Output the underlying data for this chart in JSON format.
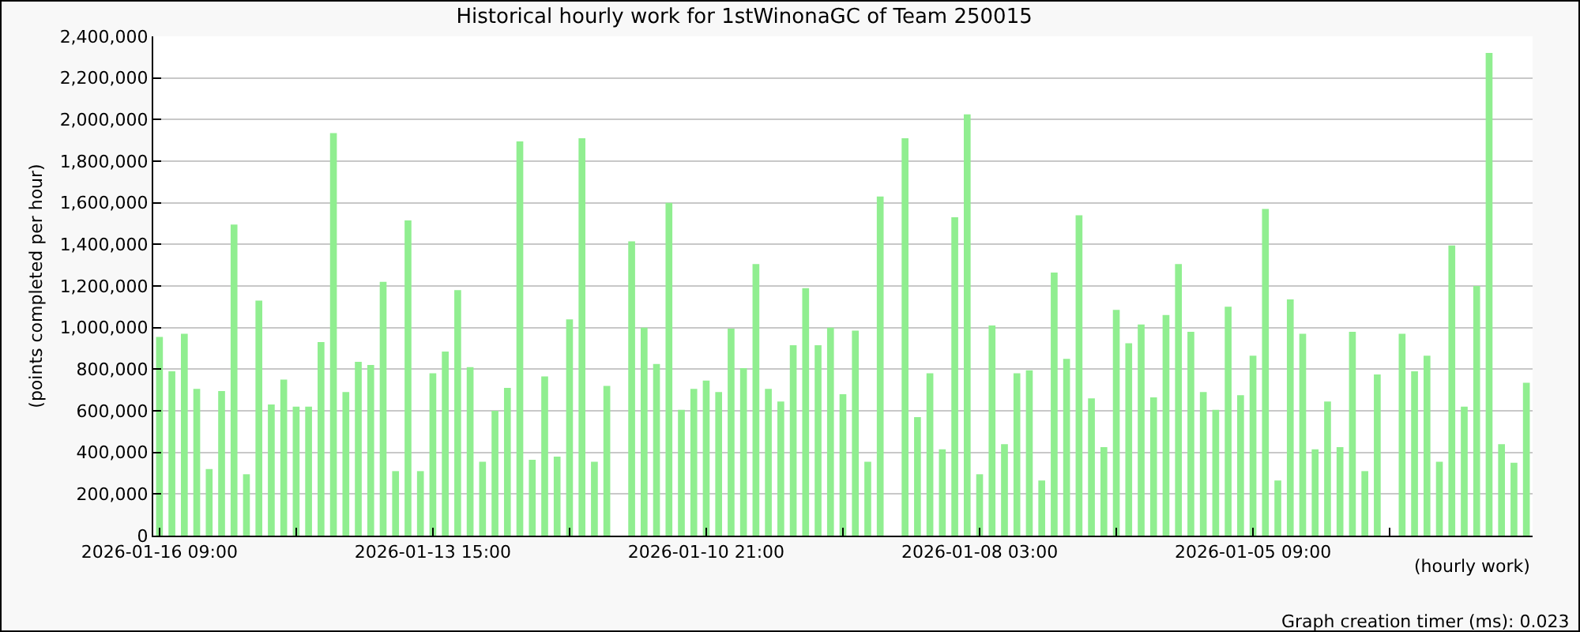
{
  "chart_data": {
    "type": "bar",
    "title": "Historical hourly work for 1stWinonaGC of Team 250015",
    "xlabel": "(hourly work)",
    "ylabel": "(points completed per hour)",
    "annotations": [
      "Graph creation timer (ms): 0.023"
    ],
    "categories": [
      "2026-01-16 09:00",
      null,
      null,
      null,
      null,
      null,
      null,
      null,
      null,
      null,
      null,
      null,
      null,
      null,
      null,
      null,
      null,
      null,
      null,
      null,
      null,
      null,
      "2026-01-13 15:00",
      null,
      null,
      null,
      null,
      null,
      null,
      null,
      null,
      null,
      null,
      null,
      null,
      null,
      null,
      null,
      null,
      null,
      null,
      null,
      null,
      null,
      "2026-01-10 21:00",
      null,
      null,
      null,
      null,
      null,
      null,
      null,
      null,
      null,
      null,
      null,
      null,
      null,
      null,
      null,
      null,
      null,
      null,
      null,
      null,
      null,
      "2026-01-08 03:00",
      null,
      null,
      null,
      null,
      null,
      null,
      null,
      null,
      null,
      null,
      null,
      null,
      null,
      null,
      null,
      null,
      null,
      null,
      null,
      null,
      null,
      "2026-01-05 09:00",
      null,
      null,
      null,
      null,
      null,
      null,
      null,
      null,
      null,
      null,
      null,
      null,
      null,
      null,
      null,
      null,
      null,
      null,
      null,
      null,
      null,
      null
    ],
    "values": [
      955000,
      790000,
      970000,
      705000,
      320000,
      695000,
      1495000,
      295000,
      1130000,
      630000,
      750000,
      620000,
      620000,
      930000,
      1935000,
      690000,
      835000,
      820000,
      1220000,
      310000,
      1515000,
      310000,
      780000,
      885000,
      1180000,
      810000,
      355000,
      600000,
      710000,
      1895000,
      365000,
      765000,
      380000,
      1040000,
      1910000,
      355000,
      720000,
      null,
      1415000,
      1000000,
      825000,
      1600000,
      605000,
      705000,
      745000,
      690000,
      995000,
      805000,
      1305000,
      705000,
      645000,
      915000,
      1190000,
      915000,
      1000000,
      680000,
      985000,
      355000,
      1630000,
      null,
      1910000,
      570000,
      780000,
      415000,
      1530000,
      2025000,
      295000,
      1010000,
      440000,
      780000,
      795000,
      265000,
      1265000,
      850000,
      1540000,
      660000,
      425000,
      1085000,
      925000,
      1015000,
      665000,
      1060000,
      1305000,
      980000,
      690000,
      605000,
      1100000,
      675000,
      865000,
      1570000,
      265000,
      1135000,
      970000,
      415000,
      645000,
      425000,
      980000,
      310000,
      775000,
      null,
      970000,
      790000,
      865000,
      355000,
      1395000,
      620000,
      1200000,
      2320000,
      440000,
      350000,
      735000
    ],
    "color": "#90ee90",
    "ylim": [
      0,
      2400000
    ],
    "yticks": [
      {
        "value": 0,
        "label": "0"
      },
      {
        "value": 200000,
        "label": "200,000"
      },
      {
        "value": 400000,
        "label": "400,000"
      },
      {
        "value": 600000,
        "label": "600,000"
      },
      {
        "value": 800000,
        "label": "800,000"
      },
      {
        "value": 1000000,
        "label": "1,000,000"
      },
      {
        "value": 1200000,
        "label": "1,200,000"
      },
      {
        "value": 1400000,
        "label": "1,400,000"
      },
      {
        "value": 1600000,
        "label": "1,600,000"
      },
      {
        "value": 1800000,
        "label": "1,800,000"
      },
      {
        "value": 2000000,
        "label": "2,000,000"
      },
      {
        "value": 2200000,
        "label": "2,200,000"
      },
      {
        "value": 2400000,
        "label": "2,400,000"
      }
    ],
    "grid": "y"
  }
}
